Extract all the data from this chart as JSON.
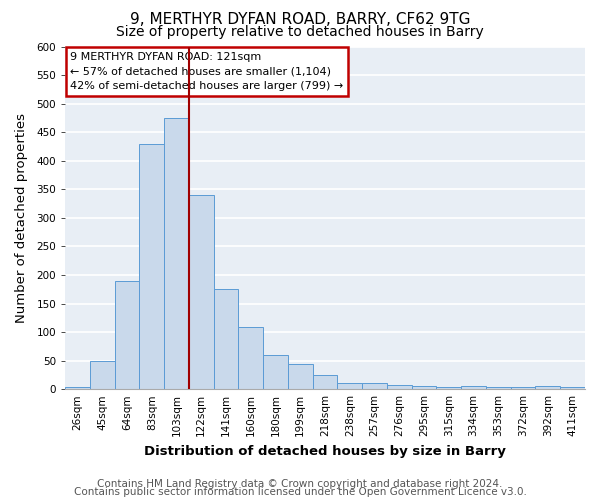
{
  "title": "9, MERTHYR DYFAN ROAD, BARRY, CF62 9TG",
  "subtitle": "Size of property relative to detached houses in Barry",
  "xlabel": "Distribution of detached houses by size in Barry",
  "ylabel": "Number of detached properties",
  "bin_labels": [
    "26sqm",
    "45sqm",
    "64sqm",
    "83sqm",
    "103sqm",
    "122sqm",
    "141sqm",
    "160sqm",
    "180sqm",
    "199sqm",
    "218sqm",
    "238sqm",
    "257sqm",
    "276sqm",
    "295sqm",
    "315sqm",
    "334sqm",
    "353sqm",
    "372sqm",
    "392sqm",
    "411sqm"
  ],
  "bar_heights": [
    3,
    50,
    190,
    430,
    475,
    340,
    175,
    108,
    60,
    44,
    25,
    11,
    11,
    7,
    5,
    3,
    5,
    3,
    3,
    5,
    3
  ],
  "bar_color": "#c9d9eb",
  "bar_edge_color": "#5b9bd5",
  "vline_x": 5,
  "vline_color": "#a00000",
  "ylim": [
    0,
    600
  ],
  "yticks": [
    0,
    50,
    100,
    150,
    200,
    250,
    300,
    350,
    400,
    450,
    500,
    550,
    600
  ],
  "annotation_title": "9 MERTHYR DYFAN ROAD: 121sqm",
  "annotation_line1": "← 57% of detached houses are smaller (1,104)",
  "annotation_line2": "42% of semi-detached houses are larger (799) →",
  "annotation_box_edge": "#c00000",
  "footer_line1": "Contains HM Land Registry data © Crown copyright and database right 2024.",
  "footer_line2": "Contains public sector information licensed under the Open Government Licence v3.0.",
  "background_color": "#e8eef5",
  "grid_color": "#ffffff",
  "title_fontsize": 11,
  "subtitle_fontsize": 10,
  "axis_label_fontsize": 9.5,
  "tick_fontsize": 7.5,
  "footer_fontsize": 7.5
}
